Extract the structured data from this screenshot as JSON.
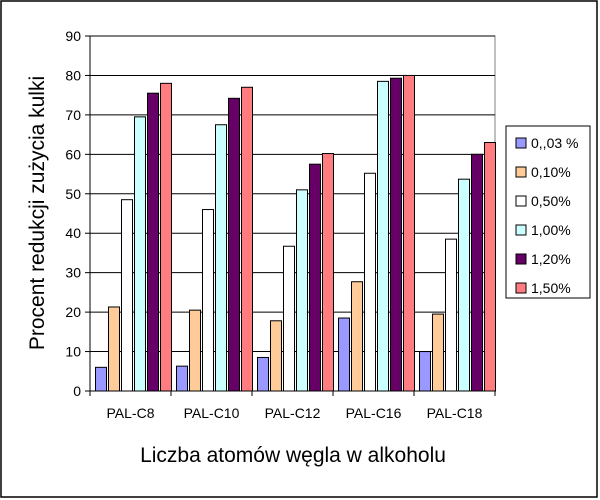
{
  "chart_data": {
    "type": "bar",
    "title": "",
    "xlabel": "Liczba atomów węgla w alkoholu",
    "ylabel": "Procent redukcji zużycia kulki",
    "ylim": [
      0,
      90
    ],
    "yticks": [
      "0",
      "10",
      "20",
      "30",
      "40",
      "50",
      "60",
      "70",
      "80",
      "90"
    ],
    "categories": [
      "PAL-C8",
      "PAL-C10",
      "PAL-C12",
      "PAL-C16",
      "PAL-C18"
    ],
    "grid": "horizontal major gridlines",
    "legend_position": "right",
    "series": [
      {
        "name": "0,,03 %",
        "color": "#9999ff",
        "values": [
          6,
          6.3,
          8.5,
          18.5,
          10
        ]
      },
      {
        "name": "0,10%",
        "color": "#ffcc99",
        "values": [
          21.3,
          20.5,
          17.8,
          27.7,
          19.5
        ]
      },
      {
        "name": "0,50%",
        "color": "#ffffff",
        "values": [
          48.5,
          46,
          36.7,
          55.2,
          38.5
        ]
      },
      {
        "name": "1,00%",
        "color": "#ccffff",
        "values": [
          69.5,
          67.5,
          51,
          78.5,
          53.7
        ]
      },
      {
        "name": "1,20%",
        "color": "#660066",
        "values": [
          75.5,
          74.2,
          57.5,
          79.3,
          60
        ]
      },
      {
        "name": "1,50%",
        "color": "#ff7c80",
        "values": [
          78,
          77,
          60.2,
          80,
          63
        ]
      }
    ]
  }
}
